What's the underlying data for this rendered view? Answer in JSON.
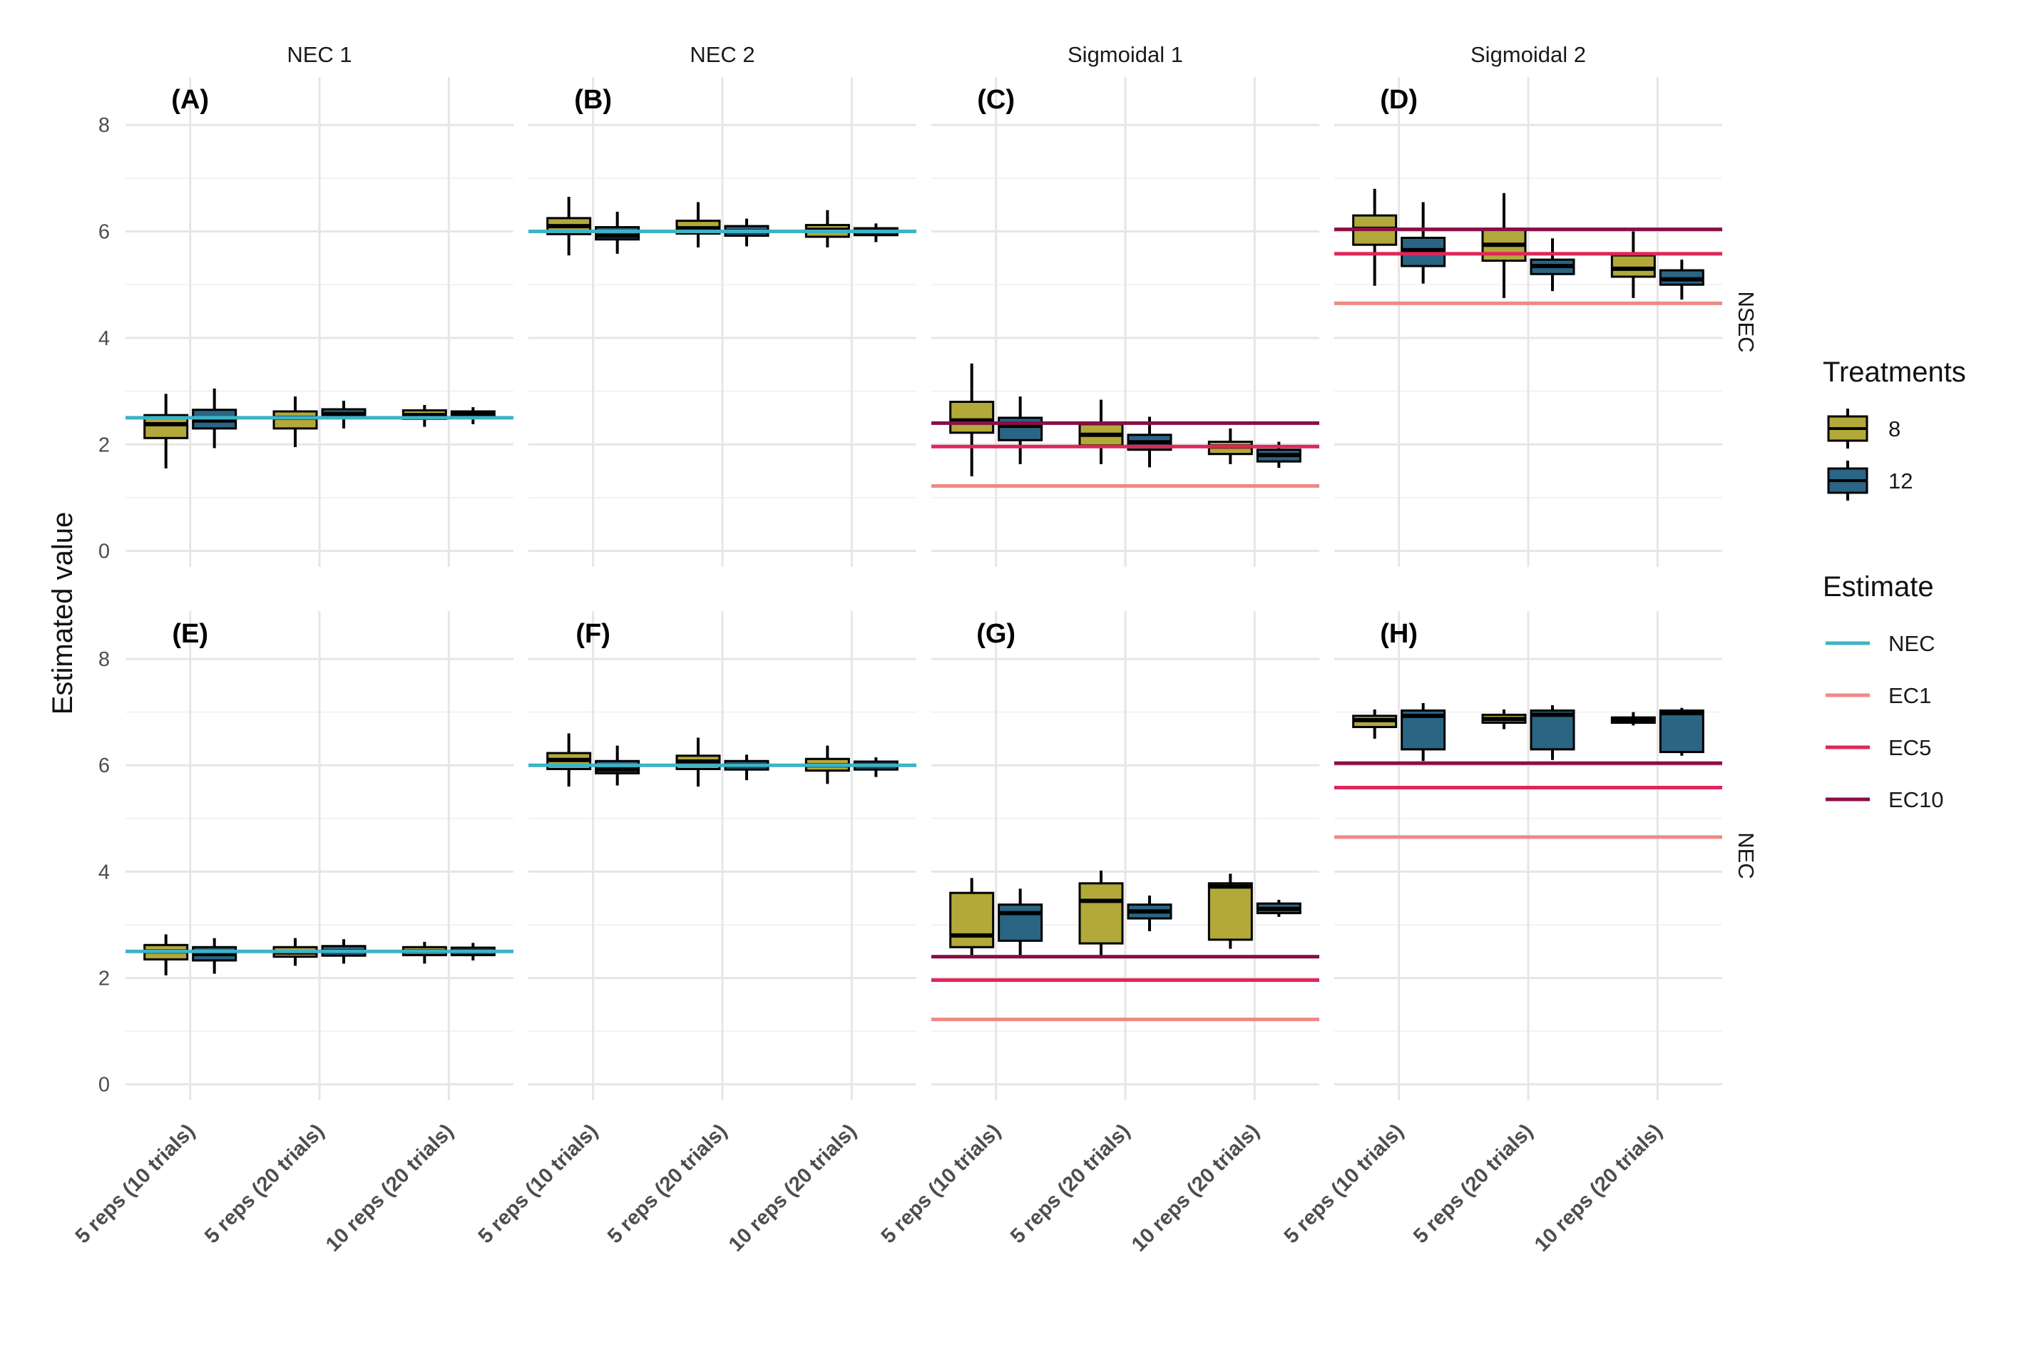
{
  "chart_data": {
    "type": "box",
    "y_axis_label": "Estimated value",
    "ylim": [
      -0.3,
      8.9
    ],
    "y_ticks": [
      0,
      2,
      4,
      6,
      8
    ],
    "categories": [
      "5 reps (10 trials)",
      "5 reps (20 trials)",
      "10 reps (20 trials)"
    ],
    "column_strips": [
      "NEC 1",
      "NEC 2",
      "Sigmoidal 1",
      "Sigmoidal 2"
    ],
    "row_strips": [
      "NSEC",
      "NEC"
    ],
    "legends": {
      "treatments": {
        "title": "Treatments",
        "items": [
          {
            "label": "8",
            "color": "#b2a93a"
          },
          {
            "label": "12",
            "color": "#2b6584"
          }
        ]
      },
      "estimate": {
        "title": "Estimate",
        "items": [
          {
            "label": "NEC",
            "color": "#3db3c6"
          },
          {
            "label": "EC1",
            "color": "#ef8985"
          },
          {
            "label": "EC5",
            "color": "#e0265a"
          },
          {
            "label": "EC10",
            "color": "#8a0d46"
          }
        ]
      }
    },
    "panels": [
      {
        "tag": "(A)",
        "row": 0,
        "col": 0,
        "lines": [
          {
            "estimate": "NEC",
            "y": 2.5
          }
        ],
        "boxes": {
          "8": [
            [
              1.55,
              2.12,
              2.38,
              2.55,
              2.95
            ],
            [
              1.95,
              2.3,
              2.5,
              2.62,
              2.9
            ],
            [
              2.33,
              2.48,
              2.55,
              2.64,
              2.74
            ]
          ],
          "12": [
            [
              1.93,
              2.3,
              2.45,
              2.65,
              3.05
            ],
            [
              2.3,
              2.5,
              2.57,
              2.66,
              2.82
            ],
            [
              2.38,
              2.5,
              2.56,
              2.62,
              2.7
            ]
          ]
        }
      },
      {
        "tag": "(B)",
        "row": 0,
        "col": 1,
        "lines": [
          {
            "estimate": "NEC",
            "y": 6.0
          }
        ],
        "boxes": {
          "8": [
            [
              5.55,
              5.95,
              6.1,
              6.25,
              6.65
            ],
            [
              5.7,
              5.96,
              6.06,
              6.2,
              6.55
            ],
            [
              5.7,
              5.9,
              6.03,
              6.12,
              6.4
            ]
          ],
          "12": [
            [
              5.58,
              5.85,
              5.92,
              6.08,
              6.37
            ],
            [
              5.72,
              5.92,
              6.0,
              6.1,
              6.24
            ],
            [
              5.8,
              5.93,
              6.0,
              6.06,
              6.15
            ]
          ]
        }
      },
      {
        "tag": "(C)",
        "row": 0,
        "col": 2,
        "lines": [
          {
            "estimate": "EC1",
            "y": 1.22
          },
          {
            "estimate": "EC5",
            "y": 1.96
          },
          {
            "estimate": "EC10",
            "y": 2.4
          }
        ],
        "boxes": {
          "8": [
            [
              1.4,
              2.22,
              2.45,
              2.8,
              3.52
            ],
            [
              1.63,
              1.98,
              2.18,
              2.38,
              2.84
            ],
            [
              1.63,
              1.82,
              1.96,
              2.05,
              2.3
            ]
          ],
          "12": [
            [
              1.63,
              2.08,
              2.35,
              2.5,
              2.9
            ],
            [
              1.57,
              1.9,
              2.04,
              2.18,
              2.52
            ],
            [
              1.56,
              1.68,
              1.8,
              1.9,
              2.05
            ]
          ]
        }
      },
      {
        "tag": "(D)",
        "row": 0,
        "col": 3,
        "lines": [
          {
            "estimate": "EC1",
            "y": 4.65
          },
          {
            "estimate": "EC5",
            "y": 5.58
          },
          {
            "estimate": "EC10",
            "y": 6.04
          }
        ],
        "boxes": {
          "8": [
            [
              4.98,
              5.75,
              6.05,
              6.3,
              6.8
            ],
            [
              4.75,
              5.45,
              5.75,
              6.05,
              6.72
            ],
            [
              4.75,
              5.15,
              5.3,
              5.55,
              6.0
            ]
          ],
          "12": [
            [
              5.02,
              5.35,
              5.65,
              5.88,
              6.55
            ],
            [
              4.88,
              5.2,
              5.35,
              5.47,
              5.87
            ],
            [
              4.72,
              5.0,
              5.1,
              5.27,
              5.47
            ]
          ]
        }
      },
      {
        "tag": "(E)",
        "row": 1,
        "col": 0,
        "lines": [
          {
            "estimate": "NEC",
            "y": 2.5
          }
        ],
        "boxes": {
          "8": [
            [
              2.05,
              2.35,
              2.5,
              2.62,
              2.82
            ],
            [
              2.23,
              2.4,
              2.48,
              2.58,
              2.75
            ],
            [
              2.27,
              2.43,
              2.5,
              2.58,
              2.68
            ]
          ],
          "12": [
            [
              2.08,
              2.33,
              2.45,
              2.58,
              2.75
            ],
            [
              2.27,
              2.42,
              2.5,
              2.6,
              2.73
            ],
            [
              2.33,
              2.43,
              2.5,
              2.57,
              2.66
            ]
          ]
        }
      },
      {
        "tag": "(F)",
        "row": 1,
        "col": 1,
        "lines": [
          {
            "estimate": "NEC",
            "y": 6.0
          }
        ],
        "boxes": {
          "8": [
            [
              5.6,
              5.93,
              6.1,
              6.23,
              6.6
            ],
            [
              5.6,
              5.93,
              6.07,
              6.18,
              6.52
            ],
            [
              5.65,
              5.9,
              6.0,
              6.12,
              6.37
            ]
          ],
          "12": [
            [
              5.62,
              5.85,
              5.92,
              6.08,
              6.37
            ],
            [
              5.72,
              5.92,
              6.0,
              6.08,
              6.2
            ],
            [
              5.78,
              5.92,
              6.0,
              6.07,
              6.15
            ]
          ]
        }
      },
      {
        "tag": "(G)",
        "row": 1,
        "col": 2,
        "lines": [
          {
            "estimate": "EC1",
            "y": 1.22
          },
          {
            "estimate": "EC5",
            "y": 1.96
          },
          {
            "estimate": "EC10",
            "y": 2.4
          }
        ],
        "boxes": {
          "8": [
            [
              2.4,
              2.58,
              2.8,
              3.6,
              3.88
            ],
            [
              2.4,
              2.65,
              3.45,
              3.78,
              4.02
            ],
            [
              2.55,
              2.72,
              3.72,
              3.78,
              3.96
            ]
          ],
          "12": [
            [
              2.38,
              2.7,
              3.22,
              3.38,
              3.68
            ],
            [
              2.88,
              3.12,
              3.25,
              3.38,
              3.55
            ],
            [
              3.15,
              3.22,
              3.3,
              3.4,
              3.47
            ]
          ]
        }
      },
      {
        "tag": "(H)",
        "row": 1,
        "col": 3,
        "lines": [
          {
            "estimate": "EC1",
            "y": 4.65
          },
          {
            "estimate": "EC5",
            "y": 5.58
          },
          {
            "estimate": "EC10",
            "y": 6.04
          }
        ],
        "boxes": {
          "8": [
            [
              6.5,
              6.72,
              6.85,
              6.93,
              7.05
            ],
            [
              6.68,
              6.8,
              6.87,
              6.95,
              7.05
            ],
            [
              6.75,
              6.8,
              6.85,
              6.9,
              7.0
            ]
          ],
          "12": [
            [
              6.08,
              6.3,
              6.93,
              7.03,
              7.17
            ],
            [
              6.1,
              6.3,
              6.95,
              7.03,
              7.13
            ],
            [
              6.18,
              6.25,
              6.98,
              7.03,
              7.08
            ]
          ]
        }
      }
    ]
  }
}
